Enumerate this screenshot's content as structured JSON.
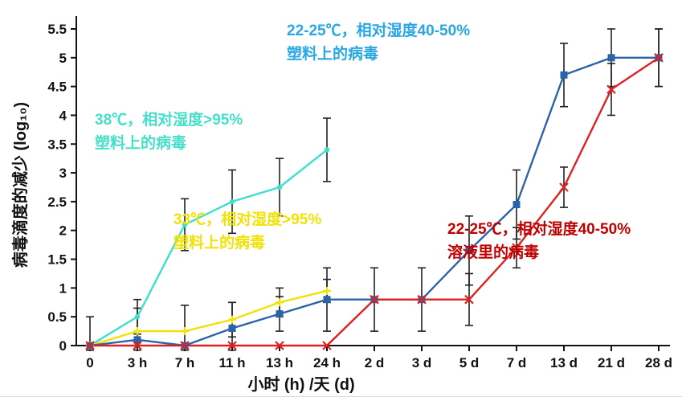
{
  "chart_data": {
    "type": "line",
    "title": "",
    "xlabel": "小时 (h) /天 (d)",
    "ylabel": "病毒滴度的减少 (log₁₀)",
    "ylim": [
      0,
      5.5
    ],
    "ytick_step": 0.5,
    "yticks": [
      "0",
      "0.5",
      "1",
      "1.5",
      "2",
      "2.5",
      "3",
      "3.5",
      "4",
      "4.5",
      "5",
      "5.5"
    ],
    "categories": [
      "0",
      "3 h",
      "7 h",
      "11 h",
      "13 h",
      "24 h",
      "2 d",
      "3 d",
      "5 d",
      "7 d",
      "13 d",
      "21 d",
      "28 d"
    ],
    "grid": false,
    "legend_position": "annotations-on-plot",
    "error_bar_color": "#222222",
    "series": [
      {
        "name": "38℃，相对湿度>95% 塑料上的病毒",
        "color": "#3fdfcb",
        "marker": "circle",
        "values": [
          0,
          0.5,
          2.1,
          2.5,
          2.75,
          3.4,
          null,
          null,
          null,
          null,
          null,
          null,
          null
        ],
        "errors": [
          0,
          0.3,
          0.45,
          0.55,
          0.5,
          0.55,
          null,
          null,
          null,
          null,
          null,
          null,
          null
        ]
      },
      {
        "name": "33℃，相对湿度>95% 塑料上的病毒",
        "color": "#f2e204",
        "marker": "plus",
        "values": [
          0,
          0.25,
          0.25,
          0.45,
          0.75,
          0.95,
          null,
          null,
          null,
          null,
          null,
          null,
          null
        ],
        "errors": [
          0,
          0,
          0.45,
          0.3,
          0.25,
          0.2,
          null,
          null,
          null,
          null,
          null,
          null,
          null
        ]
      },
      {
        "name": "22-25℃，相对湿度40-50% 塑料上的病毒",
        "color": "#2b63a8",
        "marker": "square",
        "values": [
          0,
          0.1,
          0,
          0.3,
          0.55,
          0.8,
          0.8,
          0.8,
          1.65,
          2.45,
          4.7,
          5.0,
          5.0
        ],
        "errors": [
          0.5,
          0.55,
          0,
          0.45,
          0.3,
          0.55,
          0.55,
          0.55,
          0.6,
          0.6,
          0.55,
          0.5,
          0.5
        ]
      },
      {
        "name": "22-25℃，相对湿度40-50% 溶液里的病毒",
        "color": "#dd2222",
        "marker": "x",
        "values": [
          0,
          0,
          0,
          0,
          0,
          0,
          0.8,
          0.8,
          0.8,
          1.7,
          2.75,
          4.45,
          5.0
        ],
        "errors": [
          0,
          0,
          0,
          0,
          0,
          0,
          0,
          0,
          0.45,
          0.35,
          0.35,
          0.45,
          0.5
        ]
      }
    ],
    "annotations": [
      {
        "color": "#29a7e3",
        "line1": "22-25℃，相对湿度40-50%",
        "line2": "塑料上的病毒"
      },
      {
        "color": "#45dfc9",
        "line1": "38℃，相对湿度>95%",
        "line2": "塑料上的病毒"
      },
      {
        "color": "#f2e204",
        "line1": "33℃，相对湿度>95%",
        "line2": "塑料上的病毒"
      },
      {
        "color": "#c00000",
        "line1": "22-25℃，相对湿度40-50%",
        "line2": "溶液里的病毒"
      }
    ]
  }
}
